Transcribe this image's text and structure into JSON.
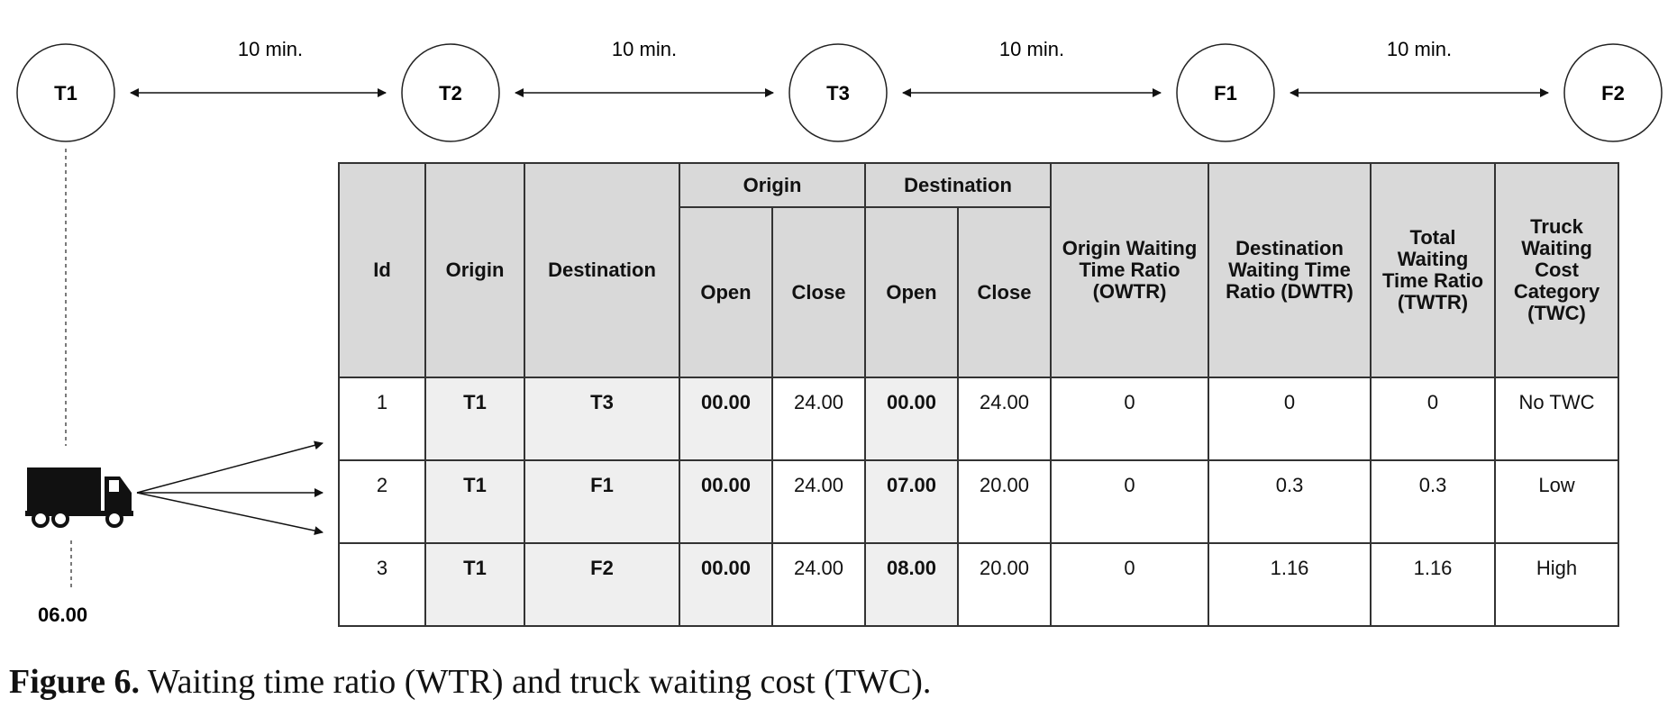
{
  "nodes": [
    "T1",
    "T2",
    "T3",
    "F1",
    "F2"
  ],
  "edges": [
    {
      "from": "T1",
      "to": "T2",
      "label": "10 min."
    },
    {
      "from": "T2",
      "to": "T3",
      "label": "10 min."
    },
    {
      "from": "T3",
      "to": "F1",
      "label": "10 min."
    },
    {
      "from": "F1",
      "to": "F2",
      "label": "10 min."
    }
  ],
  "truck": {
    "icon": "truck-icon",
    "departure_time": "06.00"
  },
  "table": {
    "headers": {
      "id": "Id",
      "origin": "Origin",
      "destination": "Destination",
      "origin_group": "Origin",
      "destination_group": "Destination",
      "open": "Open",
      "close": "Close",
      "owtr": "Origin Waiting Time Ratio (OWTR)",
      "dwtr": "Destination Waiting Time Ratio (DWTR)",
      "twtr": "Total Waiting Time Ratio (TWTR)",
      "twc": "Truck Waiting Cost Category (TWC)"
    },
    "rows": [
      {
        "id": "1",
        "origin": "T1",
        "destination": "T3",
        "origin_open": "00.00",
        "origin_close": "24.00",
        "dest_open": "00.00",
        "dest_close": "24.00",
        "owtr": "0",
        "dwtr": "0",
        "twtr": "0",
        "twc": "No TWC"
      },
      {
        "id": "2",
        "origin": "T1",
        "destination": "F1",
        "origin_open": "00.00",
        "origin_close": "24.00",
        "dest_open": "07.00",
        "dest_close": "20.00",
        "owtr": "0",
        "dwtr": "0.3",
        "twtr": "0.3",
        "twc": "Low"
      },
      {
        "id": "3",
        "origin": "T1",
        "destination": "F2",
        "origin_open": "00.00",
        "origin_close": "24.00",
        "dest_open": "08.00",
        "dest_close": "20.00",
        "owtr": "0",
        "dwtr": "1.16",
        "twtr": "1.16",
        "twc": "High"
      }
    ]
  },
  "caption": {
    "label": "Figure 6.",
    "text": " Waiting time ratio (WTR) and truck waiting cost (TWC)."
  }
}
